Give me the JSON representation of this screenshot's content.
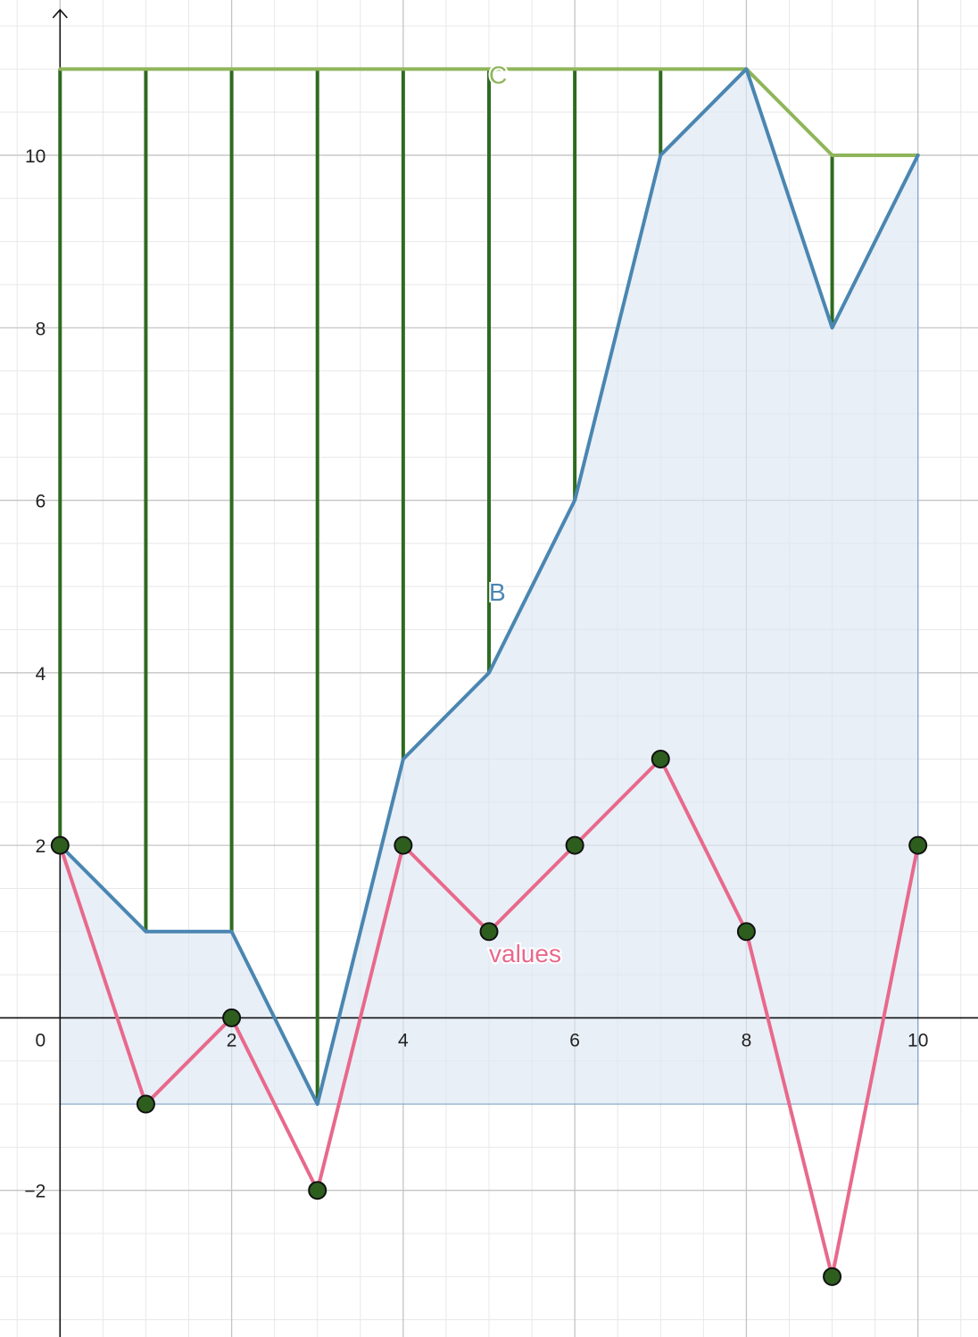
{
  "chart_data": {
    "type": "line",
    "title": "",
    "xlabel": "",
    "ylabel": "",
    "xlim": [
      -0.7,
      10.7
    ],
    "ylim": [
      -3.7,
      11.8
    ],
    "grid": true,
    "x_ticks": [
      0,
      2,
      4,
      6,
      8,
      10
    ],
    "x_tick_labels": [
      "0",
      "2",
      "4",
      "6",
      "8",
      "10"
    ],
    "y_ticks": [
      -2,
      2,
      4,
      6,
      8,
      10
    ],
    "y_tick_labels": [
      "−2",
      "2",
      "4",
      "6",
      "8",
      "10"
    ],
    "x": [
      0,
      1,
      2,
      3,
      4,
      5,
      6,
      7,
      8,
      9,
      10
    ],
    "series": [
      {
        "name": "values",
        "values": [
          2,
          -1,
          0,
          -2,
          2,
          1,
          2,
          3,
          1,
          -3,
          2
        ],
        "color": "#e8698b"
      },
      {
        "name": "B",
        "values": [
          2,
          1,
          1,
          -1,
          3,
          4,
          6,
          10,
          11,
          8,
          10
        ],
        "color": "#4a86b1"
      },
      {
        "name": "C",
        "values": [
          11,
          11,
          11,
          11,
          11,
          11,
          11,
          11,
          11,
          10,
          10
        ],
        "color": "#8fb55a"
      }
    ],
    "area": {
      "series": "B",
      "baseline": -1,
      "color": "#dce6f3"
    },
    "drop_lines": {
      "from": "C",
      "to": "B",
      "color": "#2e6b1f"
    },
    "marker_color": "#2e5e1e"
  }
}
